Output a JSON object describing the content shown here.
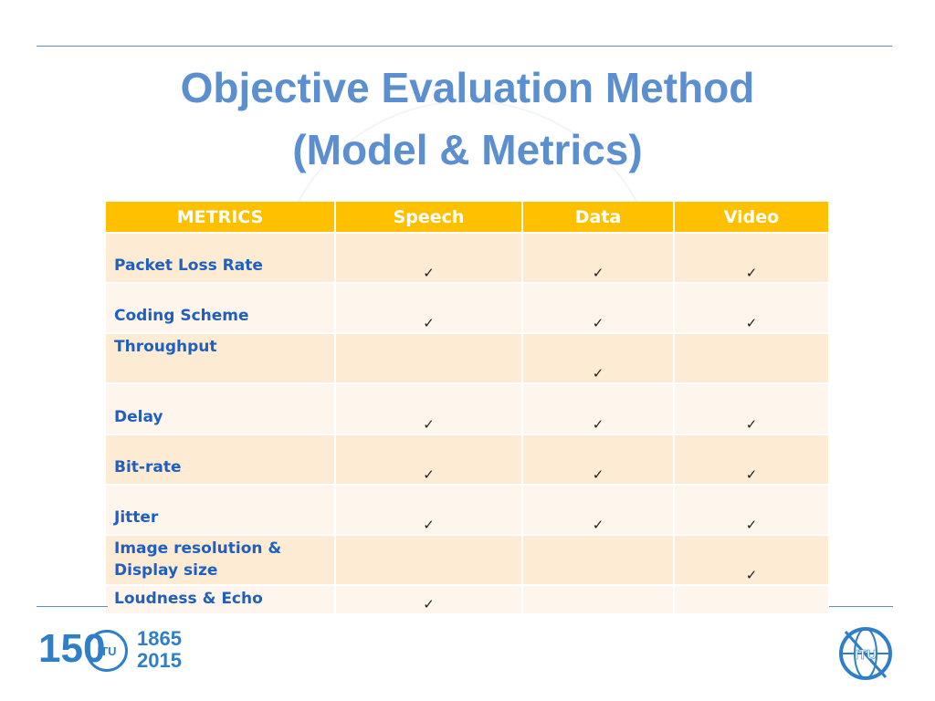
{
  "slide": {
    "title_line1": "Objective Evaluation Method",
    "title_line2": "(Model & Metrics)"
  },
  "table": {
    "headers": [
      "METRICS",
      "Speech",
      "Data",
      "Video"
    ],
    "check_symbol": "✓",
    "rows": [
      {
        "metric": "Packet Loss Rate",
        "speech": "✓",
        "data": "✓",
        "video": "✓"
      },
      {
        "metric": "Coding Scheme",
        "speech": "✓",
        "data": "✓",
        "video": "✓"
      },
      {
        "metric": "Throughput",
        "speech": "",
        "data": "✓",
        "video": ""
      },
      {
        "metric": "Delay",
        "speech": "✓",
        "data": "✓",
        "video": "✓"
      },
      {
        "metric": "Bit-rate",
        "speech": "✓",
        "data": "✓",
        "video": "✓"
      },
      {
        "metric": "Jitter",
        "speech": "✓",
        "data": "✓",
        "video": "✓"
      },
      {
        "metric": "Image resolution & Display size",
        "speech": "",
        "data": "",
        "video": "✓"
      },
      {
        "metric": "Loudness & Echo",
        "speech": "✓",
        "data": "",
        "video": ""
      }
    ]
  },
  "logos": {
    "anniversary_number": "150",
    "anniversary_globe_text": "ITU",
    "years_start": "1865",
    "years_end": "2015",
    "itu_text": "ITU"
  },
  "colors": {
    "title": "#5b8fd0",
    "header_bg": "#ffc000",
    "row_odd": "#fdebd3",
    "row_even": "#fef6ec",
    "metric_text": "#1f5fbf",
    "brand_blue": "#2f7fc8"
  }
}
